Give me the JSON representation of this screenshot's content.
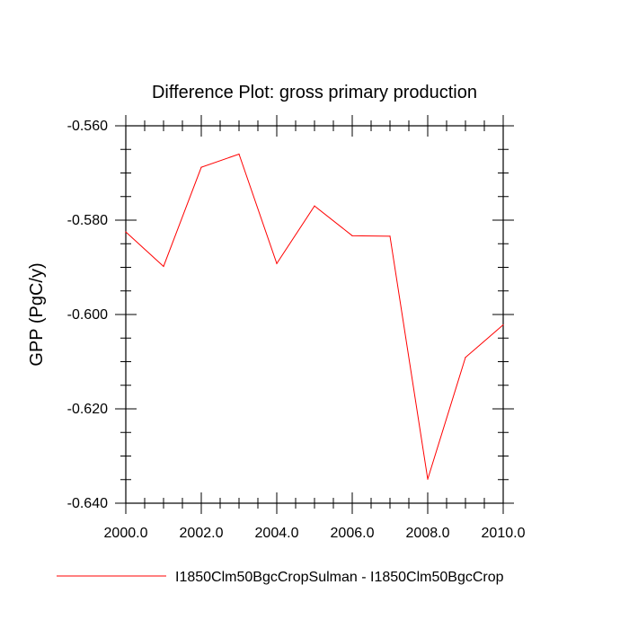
{
  "chart_data": {
    "type": "line",
    "title": "Difference Plot: gross primary production",
    "xlabel": "",
    "ylabel": "GPP  (PgC/y)",
    "xlim": [
      2000,
      2010
    ],
    "ylim": [
      -0.64,
      -0.56
    ],
    "x_ticks": [
      2000,
      2002,
      2004,
      2006,
      2008,
      2010
    ],
    "x_tick_labels": [
      "2000.0",
      "2002.0",
      "2004.0",
      "2006.0",
      "2008.0",
      "2010.0"
    ],
    "y_ticks": [
      -0.56,
      -0.58,
      -0.6,
      -0.62,
      -0.64
    ],
    "y_tick_labels": [
      "-0.560",
      "-0.580",
      "-0.600",
      "-0.620",
      "-0.640"
    ],
    "grid": false,
    "legend_position": "bottom",
    "x": [
      2000,
      2001,
      2002,
      2003,
      2004,
      2005,
      2006,
      2007,
      2008,
      2009,
      2010
    ],
    "series": [
      {
        "name": "I1850Clm50BgcCropSulman - I1850Clm50BgcCrop",
        "color": "#ff0000",
        "values": [
          -0.5825,
          -0.5898,
          -0.5688,
          -0.566,
          -0.5892,
          -0.577,
          -0.5833,
          -0.5834,
          -0.6349,
          -0.6091,
          -0.6022
        ]
      }
    ]
  }
}
